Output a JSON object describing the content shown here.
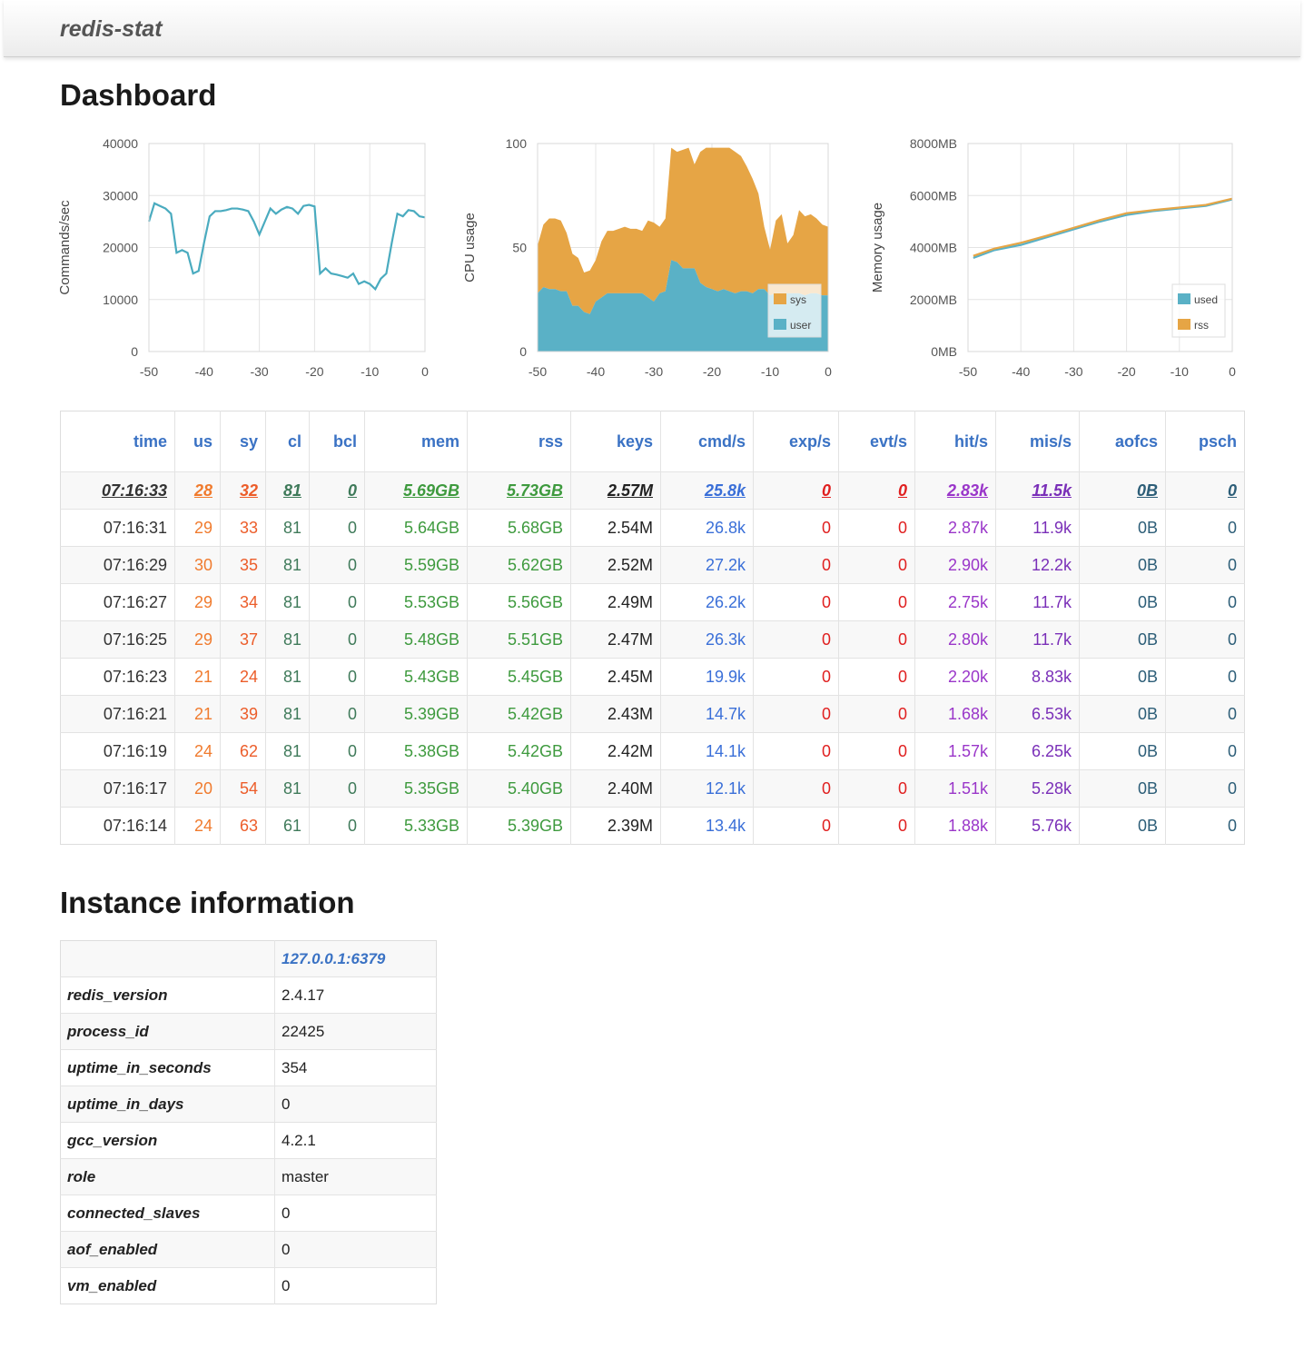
{
  "brand": "redis-stat",
  "dashboard_title": "Dashboard",
  "instance_title": "Instance information",
  "chart_data": [
    {
      "type": "line",
      "ylabel": "Commands/sec",
      "xlim": [
        -50,
        0
      ],
      "ylim": [
        0,
        40000
      ],
      "xticks": [
        "-50",
        "-40",
        "-30",
        "-20",
        "-10",
        "0"
      ],
      "yticks": [
        "0",
        "10000",
        "20000",
        "30000",
        "40000"
      ],
      "series": [
        {
          "name": "Commands/sec",
          "color": "#4aabbf",
          "x": [
            -50,
            -49,
            -48,
            -47,
            -46,
            -45,
            -44,
            -43,
            -42,
            -41,
            -40,
            -39,
            -38,
            -37,
            -36,
            -35,
            -34,
            -33,
            -32,
            -31,
            -30,
            -29,
            -28,
            -27,
            -26,
            -25,
            -24,
            -23,
            -22,
            -21,
            -20,
            -19,
            -18,
            -17,
            -16,
            -15,
            -14,
            -13,
            -12,
            -11,
            -10,
            -9,
            -8,
            -7,
            -6,
            -5,
            -4,
            -3,
            -2,
            -1,
            0
          ],
          "values": [
            25000,
            28500,
            28000,
            27500,
            26500,
            19000,
            19500,
            19000,
            15000,
            15500,
            21000,
            26000,
            27000,
            27000,
            27200,
            27500,
            27500,
            27300,
            27000,
            25000,
            22500,
            25000,
            27500,
            26500,
            27300,
            27800,
            27500,
            26500,
            28000,
            28200,
            27900,
            15000,
            16000,
            15000,
            14800,
            14500,
            14200,
            15000,
            13000,
            13500,
            13000,
            12000,
            14000,
            15000,
            21000,
            26500,
            26000,
            27200,
            27000,
            26000,
            25800
          ]
        }
      ]
    },
    {
      "type": "area",
      "ylabel": "CPU usage",
      "xlim": [
        -50,
        0
      ],
      "ylim": [
        0,
        100
      ],
      "xticks": [
        "-50",
        "-40",
        "-30",
        "-20",
        "-10",
        "0"
      ],
      "yticks": [
        "0",
        "50",
        "100"
      ],
      "legend": "bottom-right",
      "series": [
        {
          "name": "user",
          "color": "#5ab1c6",
          "values": [
            28,
            31,
            30,
            30,
            29,
            29,
            22,
            22,
            19,
            18,
            24,
            26,
            28,
            28,
            28,
            28,
            28,
            28,
            28,
            26,
            24,
            28,
            29,
            44,
            43,
            40,
            40,
            40,
            33,
            31,
            30,
            29,
            30,
            29,
            28,
            29,
            29,
            28,
            30,
            30,
            27,
            28,
            28,
            28,
            28,
            28,
            27,
            28,
            28,
            27,
            27
          ]
        },
        {
          "name": "sys",
          "color": "#e6a545",
          "values": [
            23,
            30,
            34,
            34,
            34,
            28,
            25,
            23,
            19,
            21,
            20,
            27,
            30,
            30,
            31,
            32,
            31,
            31,
            30,
            37,
            38,
            32,
            35,
            54,
            53,
            57,
            58,
            50,
            63,
            67,
            68,
            69,
            68,
            69,
            68,
            65,
            60,
            55,
            46,
            30,
            22,
            35,
            38,
            24,
            28,
            40,
            38,
            38,
            36,
            34,
            33
          ]
        }
      ]
    },
    {
      "type": "line",
      "ylabel": "Memory usage",
      "xlim": [
        -50,
        0
      ],
      "ylim": [
        0,
        8000
      ],
      "xticks": [
        "-50",
        "-40",
        "-30",
        "-20",
        "-10",
        "0"
      ],
      "yticks": [
        "0MB",
        "2000MB",
        "4000MB",
        "6000MB",
        "8000MB"
      ],
      "legend": "bottom-right",
      "series": [
        {
          "name": "used",
          "color": "#5ab1c6",
          "x": [
            -49,
            -45,
            -40,
            -35,
            -30,
            -25,
            -20,
            -15,
            -10,
            -5,
            0
          ],
          "values": [
            3600,
            3900,
            4100,
            4400,
            4700,
            5000,
            5250,
            5400,
            5500,
            5600,
            5850
          ]
        },
        {
          "name": "rss",
          "color": "#e6a545",
          "x": [
            -49,
            -45,
            -40,
            -35,
            -30,
            -25,
            -20,
            -15,
            -10,
            -5,
            0
          ],
          "values": [
            3680,
            3960,
            4180,
            4460,
            4760,
            5060,
            5320,
            5440,
            5540,
            5640,
            5880
          ]
        }
      ]
    }
  ],
  "stats": {
    "columns": [
      "time",
      "us",
      "sy",
      "cl",
      "bcl",
      "mem",
      "rss",
      "keys",
      "cmd/s",
      "exp/s",
      "evt/s",
      "hit/s",
      "mis/s",
      "aofcs",
      "psch"
    ],
    "rows": [
      [
        "07:16:33",
        "28",
        "32",
        "81",
        "0",
        "5.69GB",
        "5.73GB",
        "2.57M",
        "25.8k",
        "0",
        "0",
        "2.83k",
        "11.5k",
        "0B",
        "0"
      ],
      [
        "07:16:31",
        "29",
        "33",
        "81",
        "0",
        "5.64GB",
        "5.68GB",
        "2.54M",
        "26.8k",
        "0",
        "0",
        "2.87k",
        "11.9k",
        "0B",
        "0"
      ],
      [
        "07:16:29",
        "30",
        "35",
        "81",
        "0",
        "5.59GB",
        "5.62GB",
        "2.52M",
        "27.2k",
        "0",
        "0",
        "2.90k",
        "12.2k",
        "0B",
        "0"
      ],
      [
        "07:16:27",
        "29",
        "34",
        "81",
        "0",
        "5.53GB",
        "5.56GB",
        "2.49M",
        "26.2k",
        "0",
        "0",
        "2.75k",
        "11.7k",
        "0B",
        "0"
      ],
      [
        "07:16:25",
        "29",
        "37",
        "81",
        "0",
        "5.48GB",
        "5.51GB",
        "2.47M",
        "26.3k",
        "0",
        "0",
        "2.80k",
        "11.7k",
        "0B",
        "0"
      ],
      [
        "07:16:23",
        "21",
        "24",
        "81",
        "0",
        "5.43GB",
        "5.45GB",
        "2.45M",
        "19.9k",
        "0",
        "0",
        "2.20k",
        "8.83k",
        "0B",
        "0"
      ],
      [
        "07:16:21",
        "21",
        "39",
        "81",
        "0",
        "5.39GB",
        "5.42GB",
        "2.43M",
        "14.7k",
        "0",
        "0",
        "1.68k",
        "6.53k",
        "0B",
        "0"
      ],
      [
        "07:16:19",
        "24",
        "62",
        "81",
        "0",
        "5.38GB",
        "5.42GB",
        "2.42M",
        "14.1k",
        "0",
        "0",
        "1.57k",
        "6.25k",
        "0B",
        "0"
      ],
      [
        "07:16:17",
        "20",
        "54",
        "81",
        "0",
        "5.35GB",
        "5.40GB",
        "2.40M",
        "12.1k",
        "0",
        "0",
        "1.51k",
        "5.28k",
        "0B",
        "0"
      ],
      [
        "07:16:14",
        "24",
        "63",
        "61",
        "0",
        "5.33GB",
        "5.39GB",
        "2.39M",
        "13.4k",
        "0",
        "0",
        "1.88k",
        "5.76k",
        "0B",
        "0"
      ]
    ]
  },
  "instance": {
    "host": "127.0.0.1:6379",
    "rows": [
      [
        "redis_version",
        "2.4.17"
      ],
      [
        "process_id",
        "22425"
      ],
      [
        "uptime_in_seconds",
        "354"
      ],
      [
        "uptime_in_days",
        "0"
      ],
      [
        "gcc_version",
        "4.2.1"
      ],
      [
        "role",
        "master"
      ],
      [
        "connected_slaves",
        "0"
      ],
      [
        "aof_enabled",
        "0"
      ],
      [
        "vm_enabled",
        "0"
      ]
    ]
  }
}
